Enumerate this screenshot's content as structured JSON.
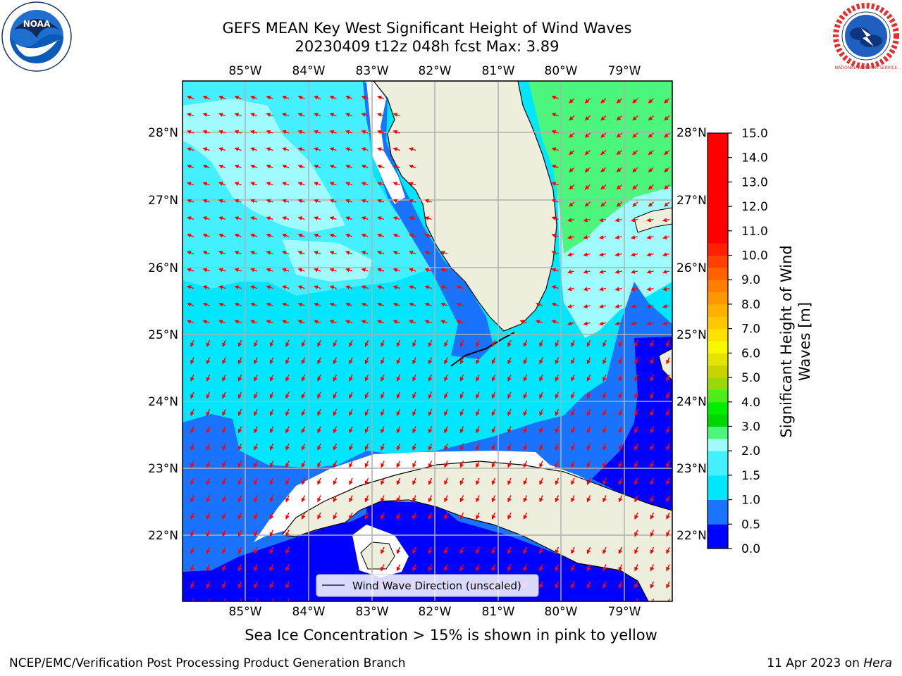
{
  "title_line1": "GEFS MEAN Key West Significant Height of Wind Waves",
  "title_line2": "20230409 t12z 048h fcst   Max: 3.89",
  "logos": {
    "left": "NOAA",
    "right": "NATIONAL WEATHER SERVICE"
  },
  "lon_labels": [
    "85°W",
    "84°W",
    "83°W",
    "82°W",
    "81°W",
    "80°W",
    "79°W"
  ],
  "lat_labels": [
    "28°N",
    "27°N",
    "26°N",
    "25°N",
    "24°N",
    "23°N",
    "22°N"
  ],
  "legend_label": "Wind Wave Direction (unscaled)",
  "colorbar": {
    "label_line1": "Significant Height of Wind",
    "label_line2": "Waves [m]",
    "ticks": [
      "15.0",
      "14.0",
      "13.0",
      "12.0",
      "11.0",
      "10.0",
      "9.0",
      "8.0",
      "7.0",
      "6.0",
      "5.0",
      "4.0",
      "3.0",
      "2.0",
      "1.5",
      "1.0",
      "0.5",
      "0.0"
    ],
    "levels": [
      0.0,
      0.5,
      1.0,
      1.5,
      2.0,
      2.5,
      3.0,
      3.5,
      4.0,
      4.5,
      5.0,
      5.5,
      6.0,
      6.5,
      7.0,
      7.5,
      8.0,
      8.5,
      9.0,
      9.5,
      10.0,
      10.5,
      11.0,
      11.5,
      12.0,
      12.5,
      13.0,
      13.5,
      14.0,
      14.5,
      15.0
    ],
    "colors": [
      "#0000ff",
      "#1a73ff",
      "#00e6ff",
      "#44f0ff",
      "#a0fbff",
      "#4cf57b",
      "#00d700",
      "#00ff00",
      "#4eec1a",
      "#82e00e",
      "#bcd000",
      "#dcdc00",
      "#ecec00",
      "#f8f800",
      "#ffe000",
      "#ffc800",
      "#ffb000",
      "#ff9800",
      "#ff8000",
      "#ff6000",
      "#ff4000",
      "#ff2000",
      "#ff0000",
      "#ff0000",
      "#ff0000",
      "#ff0000",
      "#ff0000",
      "#ff0000",
      "#ff0000",
      "#ff0000"
    ]
  },
  "ice_note": "Sea Ice Concentration > 15% is shown in pink to yellow",
  "footer_left": "NCEP/EMC/Verification Post Processing Product Generation Branch",
  "footer_date": "11 Apr 2023 on ",
  "footer_machine": "Hera",
  "field_colors": {
    "land": "#eeeedc",
    "arrow": "#ff0000",
    "grid": "#b0b0b0",
    "coast": "#000000"
  }
}
